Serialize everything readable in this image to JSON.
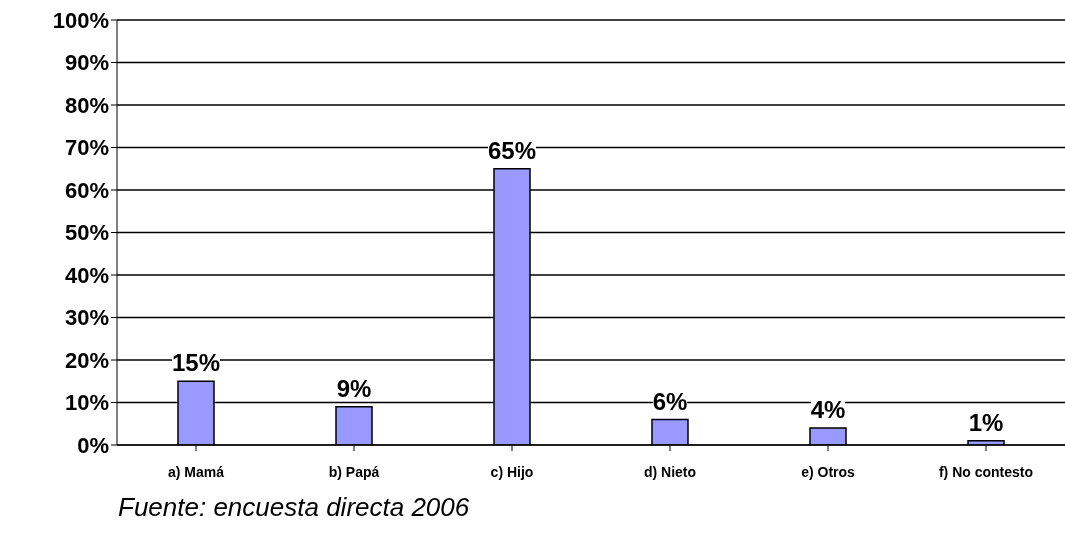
{
  "chart_data": {
    "type": "bar",
    "categories": [
      "a) Mamá",
      "b) Papá",
      "c) Hijo",
      "d) Nieto",
      "e) Otros",
      "f) No contesto"
    ],
    "values": [
      15,
      9,
      65,
      6,
      4,
      1
    ],
    "color": "#9999ff",
    "value_labels": [
      "15%",
      "9%",
      "65%",
      "6%",
      "4%",
      "1%"
    ],
    "ylim": [
      0,
      100
    ],
    "yticks": [
      {
        "value": 0,
        "label": "0%"
      },
      {
        "value": 10,
        "label": "10%"
      },
      {
        "value": 20,
        "label": "20%"
      },
      {
        "value": 30,
        "label": "30%"
      },
      {
        "value": 40,
        "label": "40%"
      },
      {
        "value": 50,
        "label": "50%"
      },
      {
        "value": 60,
        "label": "60%"
      },
      {
        "value": 70,
        "label": "70%"
      },
      {
        "value": 80,
        "label": "80%"
      },
      {
        "value": 90,
        "label": "90%"
      },
      {
        "value": 100,
        "label": "100%"
      }
    ],
    "grid": "y",
    "annotations": [
      "Fuente: encuesta directa 2006"
    ]
  }
}
